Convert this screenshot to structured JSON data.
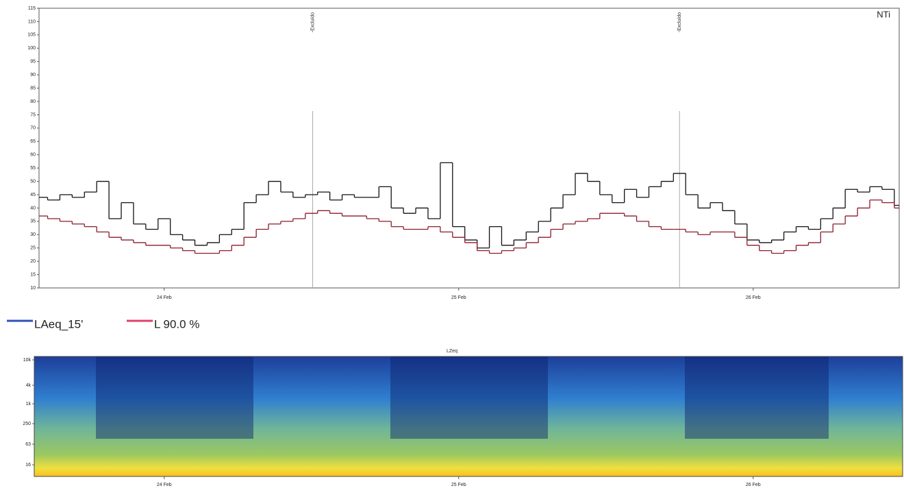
{
  "chart_data": [
    {
      "type": "step-line",
      "logo": "NTi",
      "x": [
        14,
        15,
        16,
        17,
        18,
        19,
        20,
        21,
        22,
        23,
        24,
        25,
        26,
        27,
        28,
        29,
        30,
        31,
        32,
        33,
        34,
        35,
        36,
        37,
        38,
        39,
        40,
        41,
        42,
        43,
        44,
        45,
        46,
        47,
        48,
        49,
        50,
        51,
        52,
        53,
        54,
        55,
        56,
        57,
        58,
        59,
        60,
        61,
        62,
        63,
        64,
        65,
        66,
        67,
        68,
        69,
        70,
        71,
        72,
        73,
        74,
        75,
        76,
        77,
        78,
        79,
        80,
        81,
        82,
        83,
        84
      ],
      "series": [
        {
          "name": "LAeq_15'",
          "color": "#111111",
          "legend_color": "#3050b8",
          "values": [
            44,
            43,
            45,
            44,
            46,
            50,
            36,
            42,
            34,
            32,
            36,
            30,
            28,
            26,
            27,
            30,
            32,
            42,
            45,
            50,
            46,
            44,
            45,
            46,
            43,
            45,
            44,
            44,
            48,
            40,
            38,
            40,
            36,
            57,
            33,
            28,
            25,
            33,
            26,
            28,
            31,
            35,
            40,
            45,
            53,
            50,
            45,
            42,
            47,
            44,
            48,
            50,
            53,
            45,
            40,
            42,
            39,
            34,
            28,
            27,
            28,
            31,
            33,
            32,
            36,
            40,
            47,
            46,
            48,
            47,
            41
          ]
        },
        {
          "name": "L 90.0 %",
          "color": "#8b1a2a",
          "legend_color": "#e0406a",
          "values": [
            37,
            36,
            35,
            34,
            33,
            31,
            29,
            28,
            27,
            26,
            26,
            25,
            24,
            23,
            23,
            24,
            26,
            29,
            32,
            34,
            35,
            36,
            38,
            39,
            38,
            37,
            37,
            36,
            35,
            33,
            32,
            32,
            33,
            31,
            29,
            27,
            24,
            23,
            24,
            25,
            27,
            29,
            32,
            34,
            35,
            36,
            38,
            38,
            37,
            35,
            33,
            32,
            32,
            31,
            30,
            31,
            31,
            29,
            26,
            24,
            23,
            24,
            26,
            27,
            31,
            34,
            37,
            40,
            43,
            42,
            40
          ]
        }
      ],
      "annotations": [
        {
          "text": "-Excluído",
          "x": 36.1
        },
        {
          "text": "-Excluído",
          "x": 66.0
        }
      ],
      "xlim": [
        13.8,
        83.9
      ],
      "xticks": [
        {
          "value": 24,
          "label": "24 Feb"
        },
        {
          "value": 48,
          "label": "25 Feb"
        },
        {
          "value": 72,
          "label": "26 Feb"
        }
      ],
      "ylim": [
        10,
        115
      ],
      "yticks": [
        10,
        15,
        20,
        25,
        30,
        35,
        40,
        45,
        50,
        55,
        60,
        65,
        70,
        75,
        80,
        85,
        90,
        95,
        100,
        105,
        110,
        115
      ]
    },
    {
      "type": "spectrogram",
      "title": "LZeq",
      "bands": [
        "10k",
        "4k",
        "1k",
        "250",
        "63",
        "16"
      ],
      "xlim": [
        13.8,
        83.9
      ],
      "xticks": [
        {
          "value": 24,
          "label": "24 Feb"
        },
        {
          "value": 48,
          "label": "25 Feb"
        },
        {
          "value": 72,
          "label": "26 Feb"
        }
      ]
    }
  ]
}
